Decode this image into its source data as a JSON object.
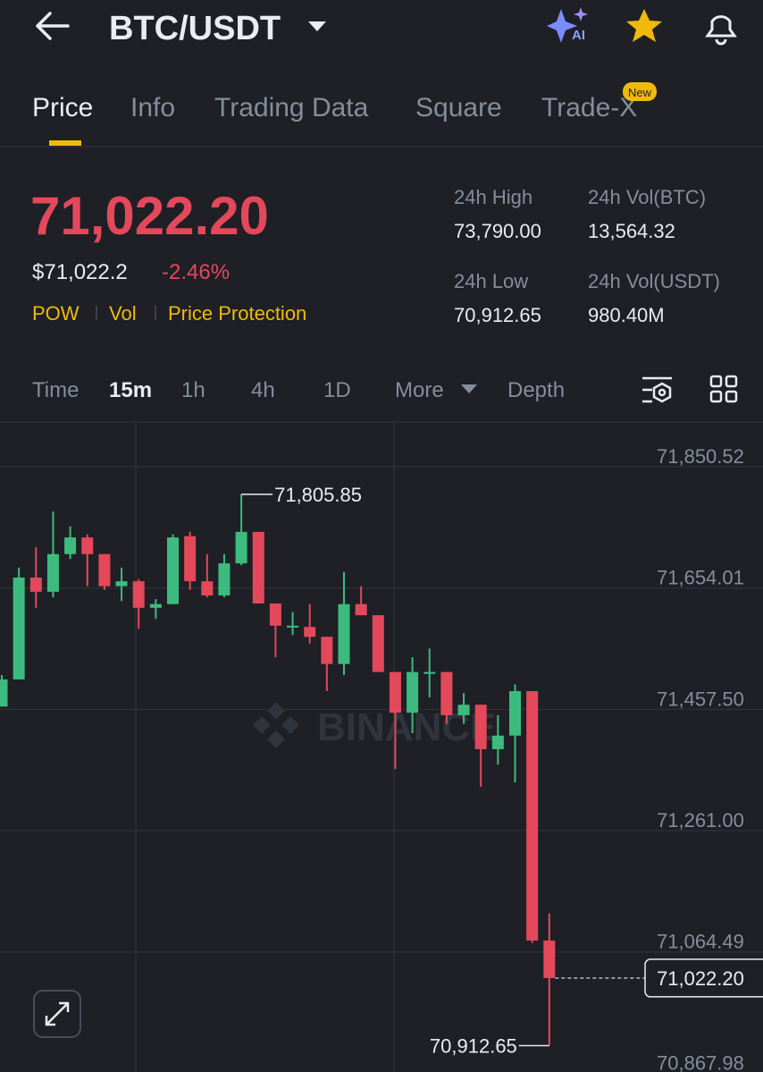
{
  "header": {
    "pair": "BTC/USDT"
  },
  "tabs": {
    "items": [
      "Price",
      "Info",
      "Trading Data",
      "Square",
      "Trade-X"
    ],
    "badge": "New"
  },
  "ticker": {
    "last_price": "71,022.20",
    "fiat_price": "$71,022.2",
    "change": "-2.46%",
    "tags": [
      "POW",
      "Vol",
      "Price Protection"
    ]
  },
  "stats": [
    {
      "label": "24h High",
      "value": "73,790.00"
    },
    {
      "label": "24h Vol(BTC)",
      "value": "13,564.32"
    },
    {
      "label": "24h Low",
      "value": "70,912.65"
    },
    {
      "label": "24h Vol(USDT)",
      "value": "980.40M"
    }
  ],
  "intervals": [
    "Time",
    "15m",
    "1h",
    "4h",
    "1D",
    "More",
    "Depth"
  ],
  "chart": {
    "type": "candlestick",
    "watermark": "BINANCE",
    "up_color": "#3dbb7e",
    "down_color": "#e4485b",
    "ylim": [
      70870,
      71923
    ],
    "yticks": [
      {
        "value": 71850.52,
        "label": "71,850.52"
      },
      {
        "value": 71654.01,
        "label": "71,654.01"
      },
      {
        "value": 71457.5,
        "label": "71,457.50"
      },
      {
        "value": 71261.0,
        "label": "71,261.00"
      },
      {
        "value": 71064.49,
        "label": "71,064.49"
      },
      {
        "value": 70867.98,
        "label": "70,867.98"
      }
    ],
    "high_label": "71,805.85",
    "low_label": "70,912.65",
    "last_label": "71,022.20",
    "candles": [
      {
        "open": 71462,
        "high": 71513,
        "low": 71462,
        "close": 71506
      },
      {
        "open": 71506,
        "high": 71687,
        "low": 71506,
        "close": 71671
      },
      {
        "open": 71671,
        "high": 71720,
        "low": 71622,
        "close": 71648
      },
      {
        "open": 71648,
        "high": 71778,
        "low": 71639,
        "close": 71709
      },
      {
        "open": 71709,
        "high": 71754,
        "low": 71701,
        "close": 71736
      },
      {
        "open": 71736,
        "high": 71741,
        "low": 71657,
        "close": 71709
      },
      {
        "open": 71709,
        "high": 71709,
        "low": 71651,
        "close": 71657
      },
      {
        "open": 71657,
        "high": 71687,
        "low": 71633,
        "close": 71665
      },
      {
        "open": 71665,
        "high": 71668,
        "low": 71588,
        "close": 71622
      },
      {
        "open": 71622,
        "high": 71636,
        "low": 71604,
        "close": 71628
      },
      {
        "open": 71628,
        "high": 71741,
        "low": 71628,
        "close": 71736
      },
      {
        "open": 71738,
        "high": 71745,
        "low": 71651,
        "close": 71665
      },
      {
        "open": 71665,
        "high": 71709,
        "low": 71639,
        "close": 71642
      },
      {
        "open": 71642,
        "high": 71709,
        "low": 71639,
        "close": 71694
      },
      {
        "open": 71694,
        "high": 71805.85,
        "low": 71691,
        "close": 71745
      },
      {
        "open": 71745,
        "high": 71745,
        "low": 71629,
        "close": 71629
      },
      {
        "open": 71629,
        "high": 71629,
        "low": 71542,
        "close": 71593
      },
      {
        "open": 71590,
        "high": 71615,
        "low": 71578,
        "close": 71593
      },
      {
        "open": 71591,
        "high": 71628,
        "low": 71564,
        "close": 71575
      },
      {
        "open": 71575,
        "high": 71575,
        "low": 71487,
        "close": 71531
      },
      {
        "open": 71531,
        "high": 71680,
        "low": 71513,
        "close": 71628
      },
      {
        "open": 71628,
        "high": 71657,
        "low": 71610,
        "close": 71610
      },
      {
        "open": 71610,
        "high": 71610,
        "low": 71518,
        "close": 71518
      },
      {
        "open": 71518,
        "high": 71518,
        "low": 71361,
        "close": 71452
      },
      {
        "open": 71452,
        "high": 71542,
        "low": 71419,
        "close": 71518
      },
      {
        "open": 71515,
        "high": 71556,
        "low": 71477,
        "close": 71518
      },
      {
        "open": 71518,
        "high": 71518,
        "low": 71434,
        "close": 71448
      },
      {
        "open": 71448,
        "high": 71484,
        "low": 71434,
        "close": 71465
      },
      {
        "open": 71465,
        "high": 71465,
        "low": 71332,
        "close": 71393
      },
      {
        "open": 71393,
        "high": 71448,
        "low": 71368,
        "close": 71415
      },
      {
        "open": 71415,
        "high": 71498,
        "low": 71339,
        "close": 71487
      },
      {
        "open": 71487,
        "high": 71487,
        "low": 71079,
        "close": 71083
      },
      {
        "open": 71083,
        "high": 71127,
        "low": 70912.65,
        "close": 71022.2
      }
    ]
  }
}
